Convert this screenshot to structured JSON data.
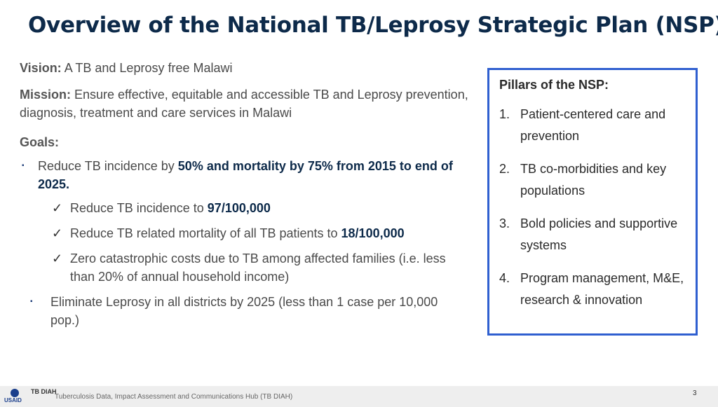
{
  "title": "Overview of the National TB/Leprosy Strategic Plan (NSP)",
  "vision": {
    "label": "Vision:",
    "text": " A TB and Leprosy free Malawi"
  },
  "mission": {
    "label": "Mission:",
    "text": " Ensure effective, equitable and accessible TB and Leprosy prevention, diagnosis, treatment and care services in Malawi"
  },
  "goals": {
    "label": "Goals:",
    "bullet_marker": "▪",
    "check_marker": "✓",
    "goal1": {
      "pre": "Reduce TB incidence by ",
      "bold": "50% and mortality by 75% from 2015 to end of 2025."
    },
    "sub1": {
      "pre": "Reduce TB incidence to ",
      "bold": "97/100,000"
    },
    "sub2": {
      "pre": "Reduce TB related mortality of all TB patients to ",
      "bold": "18/100,000"
    },
    "sub3": {
      "text": "Zero catastrophic costs due to TB among affected families (i.e. less than 20% of annual household income)"
    },
    "goal2": {
      "text": "Eliminate Leprosy in all districts by 2025 (less than 1 case per 10,000 pop.)"
    }
  },
  "pillars": {
    "title": "Pillars of the NSP:",
    "items": [
      {
        "num": "1.",
        "text": "Patient-centered care and prevention"
      },
      {
        "num": "2.",
        "text": "TB co-morbidities and key populations"
      },
      {
        "num": "3.",
        "text": "Bold policies and supportive systems"
      },
      {
        "num": "4.",
        "text": "Program management, M&E, research & innovation"
      }
    ]
  },
  "footer": {
    "logo_usaid": "USAID",
    "logo_tbdiah": "TB DIAH",
    "text": "Tuberculosis Data, Impact Assessment and Communications Hub (TB DIAH)",
    "page": "3"
  }
}
